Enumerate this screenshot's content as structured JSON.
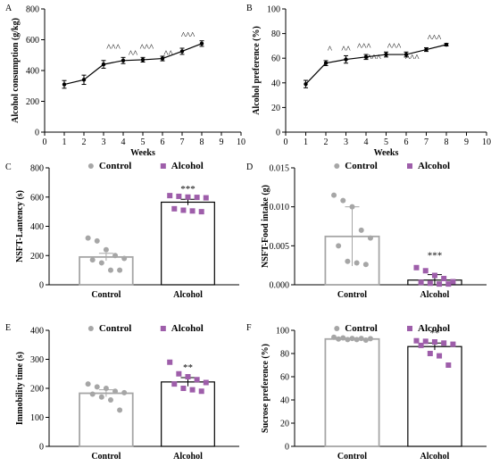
{
  "chart_data": [
    {
      "panel": "A",
      "type": "line",
      "title": "",
      "xlabel": "Weeks",
      "ylabel": "Alcohol consumption (g/kg)",
      "xlim": [
        0,
        10
      ],
      "ylim": [
        0,
        800
      ],
      "xticks": [
        0,
        1,
        2,
        3,
        4,
        5,
        6,
        7,
        8,
        9,
        10
      ],
      "yticks": [
        0,
        200,
        400,
        600,
        800
      ],
      "x": [
        1,
        2,
        3,
        4,
        5,
        6,
        7,
        8
      ],
      "values": [
        310,
        340,
        440,
        465,
        470,
        478,
        525,
        575
      ],
      "errors": [
        25,
        30,
        25,
        20,
        15,
        15,
        20,
        18
      ],
      "annotations": [
        {
          "x": 3.5,
          "y_above": 530,
          "text": "^^^"
        },
        {
          "x": 4.5,
          "y_above": 490,
          "text": "^^"
        },
        {
          "x": 5.2,
          "y_above": 530,
          "text": "^^^"
        },
        {
          "x": 6.3,
          "y_above": 490,
          "text": "^^"
        },
        {
          "x": 7.3,
          "y_above": 610,
          "text": "^^^"
        }
      ]
    },
    {
      "panel": "B",
      "type": "line",
      "title": "",
      "xlabel": "Weeks",
      "ylabel": "Alcohol preference (%)",
      "xlim": [
        0,
        10
      ],
      "ylim": [
        0,
        100
      ],
      "xticks": [
        0,
        1,
        2,
        3,
        4,
        5,
        6,
        7,
        8,
        9,
        10
      ],
      "yticks": [
        0,
        20,
        40,
        60,
        80,
        100
      ],
      "x": [
        1,
        2,
        3,
        4,
        5,
        6,
        7,
        8
      ],
      "values": [
        39,
        56,
        59,
        61,
        63,
        63,
        67,
        71
      ],
      "errors": [
        3,
        2,
        3,
        2,
        2,
        2,
        1.5,
        1
      ],
      "annotations": [
        {
          "x": 2.2,
          "y_above": 65,
          "text": "^"
        },
        {
          "x": 3.0,
          "y_above": 65,
          "text": "^^"
        },
        {
          "x": 3.9,
          "y_above": 67,
          "text": "^^^"
        },
        {
          "x": 4.4,
          "y_above": 58,
          "text": "^^^"
        },
        {
          "x": 5.4,
          "y_above": 67,
          "text": "^^^"
        },
        {
          "x": 6.3,
          "y_above": 58,
          "text": "^^^"
        },
        {
          "x": 7.4,
          "y_above": 74,
          "text": "^^^"
        }
      ]
    },
    {
      "panel": "C",
      "type": "bar",
      "title": "",
      "xlabel": "",
      "ylabel": "NSFT-Lantency (s)",
      "ylim": [
        0,
        800
      ],
      "yticks": [
        0,
        200,
        400,
        600,
        800
      ],
      "ytick_labels": [
        "0",
        "200",
        "400",
        "600",
        "800"
      ],
      "categories": [
        "Control",
        "Alcohol"
      ],
      "values": [
        190,
        565
      ],
      "errors": [
        25,
        20
      ],
      "points": [
        [
          320,
          300,
          240,
          200,
          180,
          170,
          150,
          100,
          100
        ],
        [
          610,
          605,
          600,
          598,
          595,
          520,
          510,
          505,
          500
        ]
      ],
      "significance": "***",
      "legend": [
        "Control",
        "Alcohol"
      ]
    },
    {
      "panel": "D",
      "type": "bar",
      "title": "",
      "xlabel": "",
      "ylabel": "NSFT-Food intake (g)",
      "ylim": [
        0,
        0.015
      ],
      "yticks": [
        0,
        0.005,
        0.01,
        0.015
      ],
      "ytick_labels": [
        "0.000",
        "0.005",
        "0.010",
        "0.015"
      ],
      "categories": [
        "Control",
        "Alcohol"
      ],
      "values": [
        0.0062,
        0.0006
      ],
      "errors": [
        0.0038,
        0.0007
      ],
      "points": [
        [
          0.0115,
          0.0108,
          0.01,
          0.007,
          0.006,
          0.005,
          0.003,
          0.0028,
          0.0026
        ],
        [
          0.0022,
          0.0018,
          0.0012,
          0.0008,
          0.0004,
          0.0003,
          0.0002,
          0.0001,
          0.0001
        ]
      ],
      "significance": "***",
      "legend": [
        "Control",
        "Alcohol"
      ]
    },
    {
      "panel": "E",
      "type": "bar",
      "title": "",
      "xlabel": "",
      "ylabel": "Immobility time (s)",
      "ylim": [
        0,
        400
      ],
      "yticks": [
        0,
        100,
        200,
        300,
        400
      ],
      "ytick_labels": [
        "0",
        "100",
        "200",
        "300",
        "400"
      ],
      "categories": [
        "Control",
        "Alcohol"
      ],
      "values": [
        183,
        222
      ],
      "errors": [
        12,
        15
      ],
      "points": [
        [
          215,
          205,
          200,
          190,
          185,
          180,
          170,
          160,
          125
        ],
        [
          290,
          250,
          240,
          230,
          220,
          215,
          200,
          195,
          190
        ]
      ],
      "significance": "**",
      "legend": [
        "Control",
        "Alcohol"
      ]
    },
    {
      "panel": "F",
      "type": "bar",
      "title": "",
      "xlabel": "",
      "ylabel": "Sucrose preference (%)",
      "ylim": [
        0,
        100
      ],
      "yticks": [
        0,
        20,
        40,
        60,
        80,
        100
      ],
      "ytick_labels": [
        "0",
        "20",
        "40",
        "60",
        "80",
        "100"
      ],
      "categories": [
        "Control",
        "Alcohol"
      ],
      "values": [
        92.5,
        86
      ],
      "errors": [
        0.7,
        3
      ],
      "points": [
        [
          94,
          93.5,
          93,
          93,
          92.8,
          92.5,
          92,
          92,
          91.5
        ],
        [
          91,
          90.5,
          90,
          89,
          88,
          87,
          80,
          78,
          70
        ]
      ],
      "significance": "**",
      "legend": [
        "Control",
        "Alcohol"
      ]
    }
  ],
  "colors": {
    "control": "#a6a6a6",
    "alcohol": "#9e5eaa",
    "line": "#000000"
  }
}
